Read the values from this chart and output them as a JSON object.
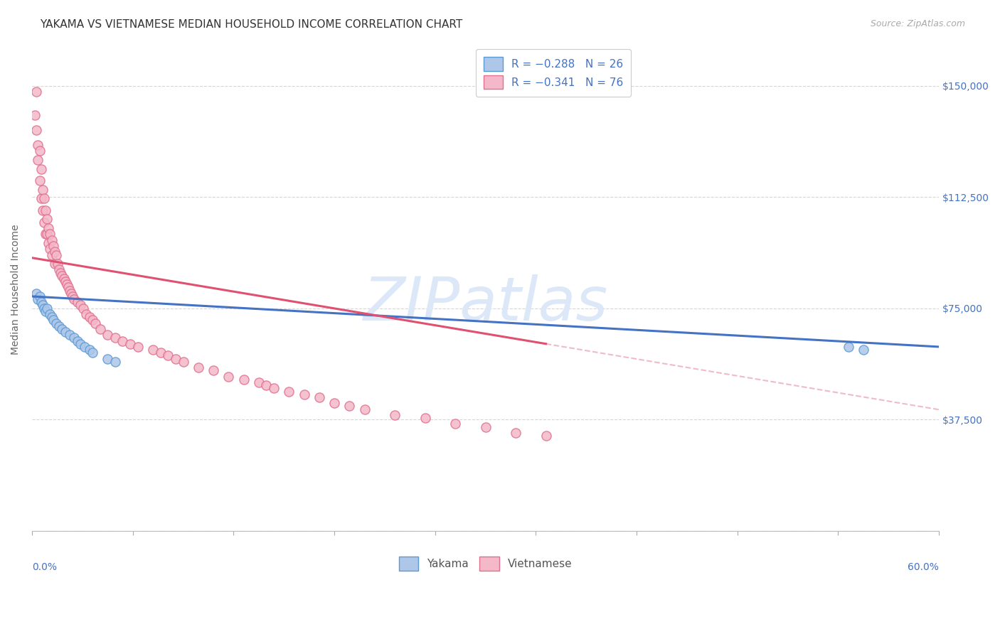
{
  "title": "YAKAMA VS VIETNAMESE MEDIAN HOUSEHOLD INCOME CORRELATION CHART",
  "source": "Source: ZipAtlas.com",
  "ylabel": "Median Household Income",
  "yticks": [
    0,
    37500,
    75000,
    112500,
    150000
  ],
  "ytick_labels": [
    "",
    "$37,500",
    "$75,000",
    "$112,500",
    "$150,000"
  ],
  "xlim": [
    0.0,
    0.6
  ],
  "ylim": [
    0,
    162500
  ],
  "yakama_color": "#aec6e8",
  "yakama_edge_color": "#5b9bd5",
  "vietnamese_color": "#f4b8c8",
  "vietnamese_edge_color": "#e07090",
  "blue_line_color": "#4472c4",
  "pink_line_color": "#e05070",
  "pink_dash_color": "#e8a0b0",
  "watermark_color": "#dce8f8",
  "r_color": "#4472c4",
  "background_color": "#ffffff",
  "title_fontsize": 11,
  "axis_label_fontsize": 10,
  "tick_fontsize": 10,
  "source_fontsize": 9,
  "legend_fontsize": 11,
  "marker_size": 90,
  "marker_linewidth": 1.0,
  "grid_color": "#cccccc",
  "grid_linestyle": "--",
  "grid_alpha": 0.8,
  "yakama_x": [
    0.003,
    0.004,
    0.005,
    0.006,
    0.007,
    0.008,
    0.009,
    0.01,
    0.012,
    0.013,
    0.014,
    0.016,
    0.018,
    0.02,
    0.022,
    0.025,
    0.028,
    0.03,
    0.032,
    0.035,
    0.038,
    0.04,
    0.05,
    0.055,
    0.54,
    0.55
  ],
  "yakama_y": [
    80000,
    78000,
    79000,
    77000,
    76000,
    75000,
    74000,
    75000,
    73000,
    72000,
    71000,
    70000,
    69000,
    68000,
    67000,
    66000,
    65000,
    64000,
    63000,
    62000,
    61000,
    60000,
    58000,
    57000,
    62000,
    61000
  ],
  "vietnamese_x": [
    0.002,
    0.003,
    0.003,
    0.004,
    0.004,
    0.005,
    0.005,
    0.006,
    0.006,
    0.007,
    0.007,
    0.008,
    0.008,
    0.009,
    0.009,
    0.01,
    0.01,
    0.011,
    0.011,
    0.012,
    0.012,
    0.013,
    0.013,
    0.014,
    0.015,
    0.015,
    0.016,
    0.017,
    0.018,
    0.019,
    0.02,
    0.021,
    0.022,
    0.023,
    0.024,
    0.025,
    0.026,
    0.027,
    0.028,
    0.03,
    0.032,
    0.034,
    0.036,
    0.038,
    0.04,
    0.042,
    0.045,
    0.05,
    0.055,
    0.06,
    0.065,
    0.07,
    0.08,
    0.085,
    0.09,
    0.095,
    0.1,
    0.11,
    0.12,
    0.13,
    0.14,
    0.15,
    0.155,
    0.16,
    0.17,
    0.18,
    0.19,
    0.2,
    0.21,
    0.22,
    0.24,
    0.26,
    0.28,
    0.3,
    0.32,
    0.34
  ],
  "vietnamese_y": [
    140000,
    148000,
    135000,
    130000,
    125000,
    128000,
    118000,
    122000,
    112000,
    115000,
    108000,
    112000,
    104000,
    108000,
    100000,
    105000,
    100000,
    102000,
    97000,
    100000,
    95000,
    98000,
    93000,
    96000,
    94000,
    90000,
    93000,
    90000,
    88000,
    87000,
    86000,
    85000,
    84000,
    83000,
    82000,
    81000,
    80000,
    79000,
    78000,
    77000,
    76000,
    75000,
    73000,
    72000,
    71000,
    70000,
    68000,
    66000,
    65000,
    64000,
    63000,
    62000,
    61000,
    60000,
    59000,
    58000,
    57000,
    55000,
    54000,
    52000,
    51000,
    50000,
    49000,
    48000,
    47000,
    46000,
    45000,
    43000,
    42000,
    41000,
    39000,
    38000,
    36000,
    35000,
    33000,
    32000
  ],
  "vn_line_xstart": 0.0,
  "vn_line_xsolid_end": 0.34,
  "vn_line_xend": 0.6,
  "yk_line_xstart": 0.0,
  "yk_line_xend": 0.6
}
